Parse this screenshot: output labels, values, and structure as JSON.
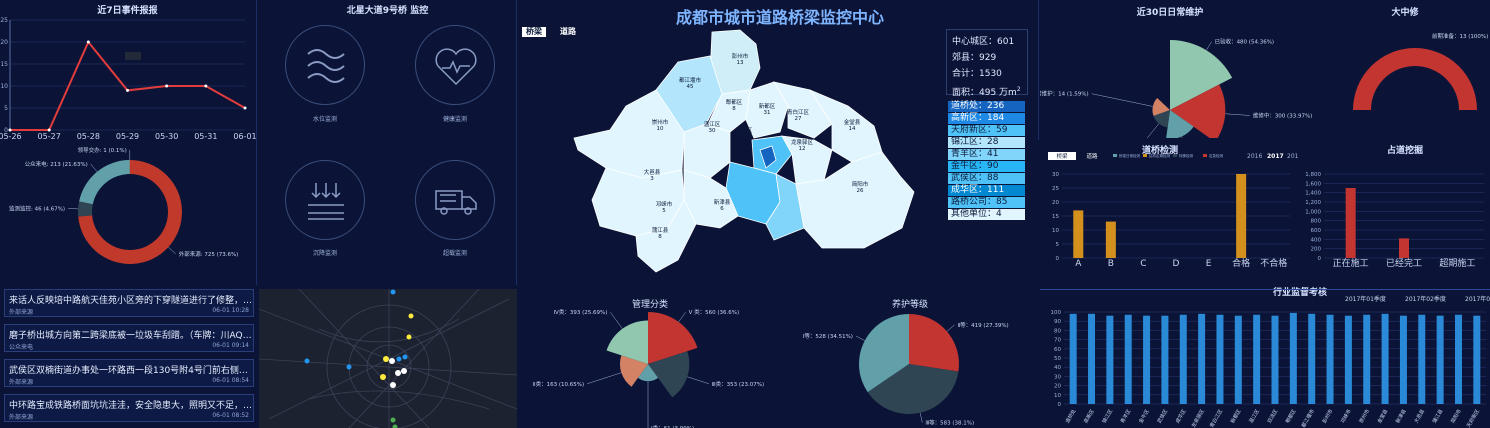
{
  "header": {
    "title": "成都市城市道路桥梁监控中心",
    "tabs": [
      "桥梁",
      "道路"
    ]
  },
  "panels": {
    "events7": "近7日事件报报",
    "bridge": "北星大道9号桥 监控",
    "maint30": "近30日日常维护",
    "major": "大中修",
    "inspect": "道桥检测",
    "occupy": "占道挖掘",
    "mgmt": "管理分类",
    "grade": "养护等级",
    "industry": "行业监督考核"
  },
  "monitor_icons": [
    {
      "label": "水位监测",
      "icon": "water-wave-icon"
    },
    {
      "label": "健康监测",
      "icon": "heart-pulse-icon"
    },
    {
      "label": "沉降监测",
      "icon": "settlement-icon"
    },
    {
      "label": "超载监测",
      "icon": "overload-truck-icon"
    }
  ],
  "stats": {
    "center": "中心城区：601",
    "county": "郊县：929",
    "total": "合计：1530",
    "area_label": "面积：495 万m",
    "area_sup": "2"
  },
  "district_legend": [
    {
      "label": "道桥处：236",
      "color": "#1565c0"
    },
    {
      "label": "高新区：184",
      "color": "#1e88e5"
    },
    {
      "label": "天府新区：59",
      "color": "#4fc3f7"
    },
    {
      "label": "锦江区：28",
      "color": "#b3e5fc"
    },
    {
      "label": "青羊区：41",
      "color": "#81d4fa"
    },
    {
      "label": "金牛区：90",
      "color": "#29b6f6"
    },
    {
      "label": "武侯区：88",
      "color": "#4fc3f7"
    },
    {
      "label": "成华区：111",
      "color": "#0288d1"
    },
    {
      "label": "路桥公司：85",
      "color": "#4fc3f7"
    },
    {
      "label": "其他单位：4",
      "color": "#e1f5fe"
    }
  ],
  "map_labels": [
    {
      "n": "彭州市",
      "v": "13"
    },
    {
      "n": "都江堰市",
      "v": "45"
    },
    {
      "n": "郫都区",
      "v": "8"
    },
    {
      "n": "新都区",
      "v": "31"
    },
    {
      "n": "青白江区",
      "v": "27"
    },
    {
      "n": "金堂县",
      "v": "14"
    },
    {
      "n": "崇州市",
      "v": "10"
    },
    {
      "n": "温江区",
      "v": "30"
    },
    {
      "n": "双流区",
      "v": "71"
    },
    {
      "n": "龙泉驿区",
      "v": "12"
    },
    {
      "n": "大邑县",
      "v": "3"
    },
    {
      "n": "邛崃市",
      "v": "5"
    },
    {
      "n": "新津县",
      "v": "6"
    },
    {
      "n": "蒲江县",
      "v": "8"
    },
    {
      "n": "简阳市",
      "v": "26"
    }
  ],
  "news": [
    {
      "title": "来话人反映培中路航天佳苑小区旁的下穿隧道进行了修整，但修整...",
      "source": "外部来源",
      "date": "06-01 10:28"
    },
    {
      "title": "磨子桥出城方向第二跨梁底被一垃圾车刮蹭。（车牌：川AQ2892）",
      "source": "公众来电",
      "date": "06-01 09:14"
    },
    {
      "title": "武侯区双楠街道办事处一环路西一段130号附4号门前右侧5米处人...",
      "source": "外部来源",
      "date": "06-01 08:54"
    },
    {
      "title": "中环路宝成铁路桥面坑坑洼洼，安全隐患大，照明又不足，且夜间...",
      "source": "外部来源",
      "date": "06-01 08:52"
    }
  ],
  "chart_data": [
    {
      "type": "line",
      "title": "近7日事件报报",
      "categories": [
        "05-26",
        "05-27",
        "05-28",
        "05-29",
        "05-30",
        "05-31",
        "06-01"
      ],
      "values": [
        0,
        0,
        20,
        9,
        10,
        10,
        5
      ],
      "ylim": [
        0,
        25
      ],
      "yticks": [
        "0",
        "5",
        "10",
        "15",
        "20",
        "25"
      ],
      "color": "#e23c3c"
    },
    {
      "type": "pie",
      "variant": "donut",
      "slices": [
        {
          "label": "外部来源: 725 (73.6%)",
          "value": 725,
          "color": "#c0392b"
        },
        {
          "label": "监测监控: 46 (4.67%)",
          "value": 46,
          "color": "#2f4554"
        },
        {
          "label": "公众来电: 213 (21.63%)",
          "value": 213,
          "color": "#61a0a8"
        },
        {
          "label": "领导交办: 1 (0.1%)",
          "value": 1,
          "color": "#d48265"
        }
      ]
    },
    {
      "type": "pie",
      "variant": "rose",
      "title": "近30日日常维护",
      "slices": [
        {
          "label": "已验收：480 (54.36%)",
          "value": 480,
          "color": "#91c7ae"
        },
        {
          "label": "维修中：300 (33.97%)",
          "value": 300,
          "color": "#c23531"
        },
        {
          "label": "一级验收：82 (9.29%)",
          "value": 82,
          "color": "#61a0a8"
        },
        {
          "label": "二级验收：7 (0.79%)",
          "value": 7,
          "color": "#2f4554"
        },
        {
          "label": "非日常维护：14 (1.59%)",
          "value": 14,
          "color": "#d48265"
        }
      ]
    },
    {
      "type": "pie",
      "variant": "gauge",
      "title": "大中修",
      "slices": [
        {
          "label": "前期准备：13 (100%)",
          "value": 13,
          "color": "#c23531"
        }
      ]
    },
    {
      "type": "bar",
      "title": "道桥检测",
      "tabs": [
        "桥梁",
        "道路"
      ],
      "legend": [
        "桥梁日常检测",
        "结构定期检测",
        "特殊检测",
        "应急检测"
      ],
      "years": [
        "2016",
        "2017",
        "2018"
      ],
      "categories": [
        "A",
        "B",
        "C",
        "D",
        "E",
        "合格",
        "不合格"
      ],
      "values": [
        17,
        13,
        0,
        0,
        0,
        30,
        0
      ],
      "ylim": [
        0,
        30
      ],
      "yticks": [
        "0",
        "5",
        "10",
        "15",
        "20",
        "25",
        "30"
      ],
      "color": "#d4901c"
    },
    {
      "type": "bar",
      "title": "占道挖掘",
      "categories": [
        "正在施工",
        "已经完工",
        "超期施工"
      ],
      "values": [
        1500,
        420,
        0
      ],
      "ylim": [
        0,
        1800
      ],
      "yticks": [
        "0",
        "200",
        "400",
        "600",
        "800",
        "1,000",
        "1,200",
        "1,400",
        "1,600",
        "1,800"
      ],
      "color": "#c23531"
    },
    {
      "type": "pie",
      "variant": "rose",
      "title": "管理分类",
      "slices": [
        {
          "label": "V 类：560 (36.6%)",
          "value": 560,
          "color": "#c23531"
        },
        {
          "label": "Ⅲ类：353 (23.07%)",
          "value": 353,
          "color": "#2f4554"
        },
        {
          "label": "Ⅰ类：61 (3.99%)",
          "value": 61,
          "color": "#61a0a8"
        },
        {
          "label": "Ⅱ类：163 (10.65%)",
          "value": 163,
          "color": "#d48265"
        },
        {
          "label": "Ⅳ类：393 (25.69%)",
          "value": 393,
          "color": "#91c7ae"
        }
      ]
    },
    {
      "type": "pie",
      "title": "养护等级",
      "slices": [
        {
          "label": "Ⅱ等：419 (27.39%)",
          "value": 419,
          "color": "#c23531"
        },
        {
          "label": "Ⅲ等：583 (38.1%)",
          "value": 583,
          "color": "#2f4554"
        },
        {
          "label": "Ⅰ等：528 (34.51%)",
          "value": 528,
          "color": "#61a0a8"
        }
      ]
    },
    {
      "type": "bar",
      "title": "行业监督考核",
      "legend": [
        "2017年01季度",
        "2017年02季度",
        "2017年03季度"
      ],
      "categories": [
        "道桥处",
        "高新区",
        "锦江区",
        "青羊区",
        "金牛区",
        "武侯区",
        "成华区",
        "龙泉驿区",
        "青白江区",
        "新都区",
        "温江区",
        "双流区",
        "郫都区",
        "都江堰市",
        "彭州市",
        "邛崃市",
        "崇州市",
        "金堂县",
        "新津县",
        "大邑县",
        "蒲江县",
        "简阳市",
        "天府新区"
      ],
      "values": [
        98,
        98,
        96,
        97,
        96,
        96,
        97,
        98,
        97,
        96,
        97,
        96,
        99,
        98,
        97,
        96,
        97,
        98,
        96,
        97,
        96,
        97,
        96
      ],
      "ylim": [
        0,
        100
      ],
      "yticks": [
        "0",
        "10",
        "20",
        "30",
        "40",
        "50",
        "60",
        "70",
        "80",
        "90",
        "100"
      ],
      "color": "#2a8ad8"
    }
  ]
}
